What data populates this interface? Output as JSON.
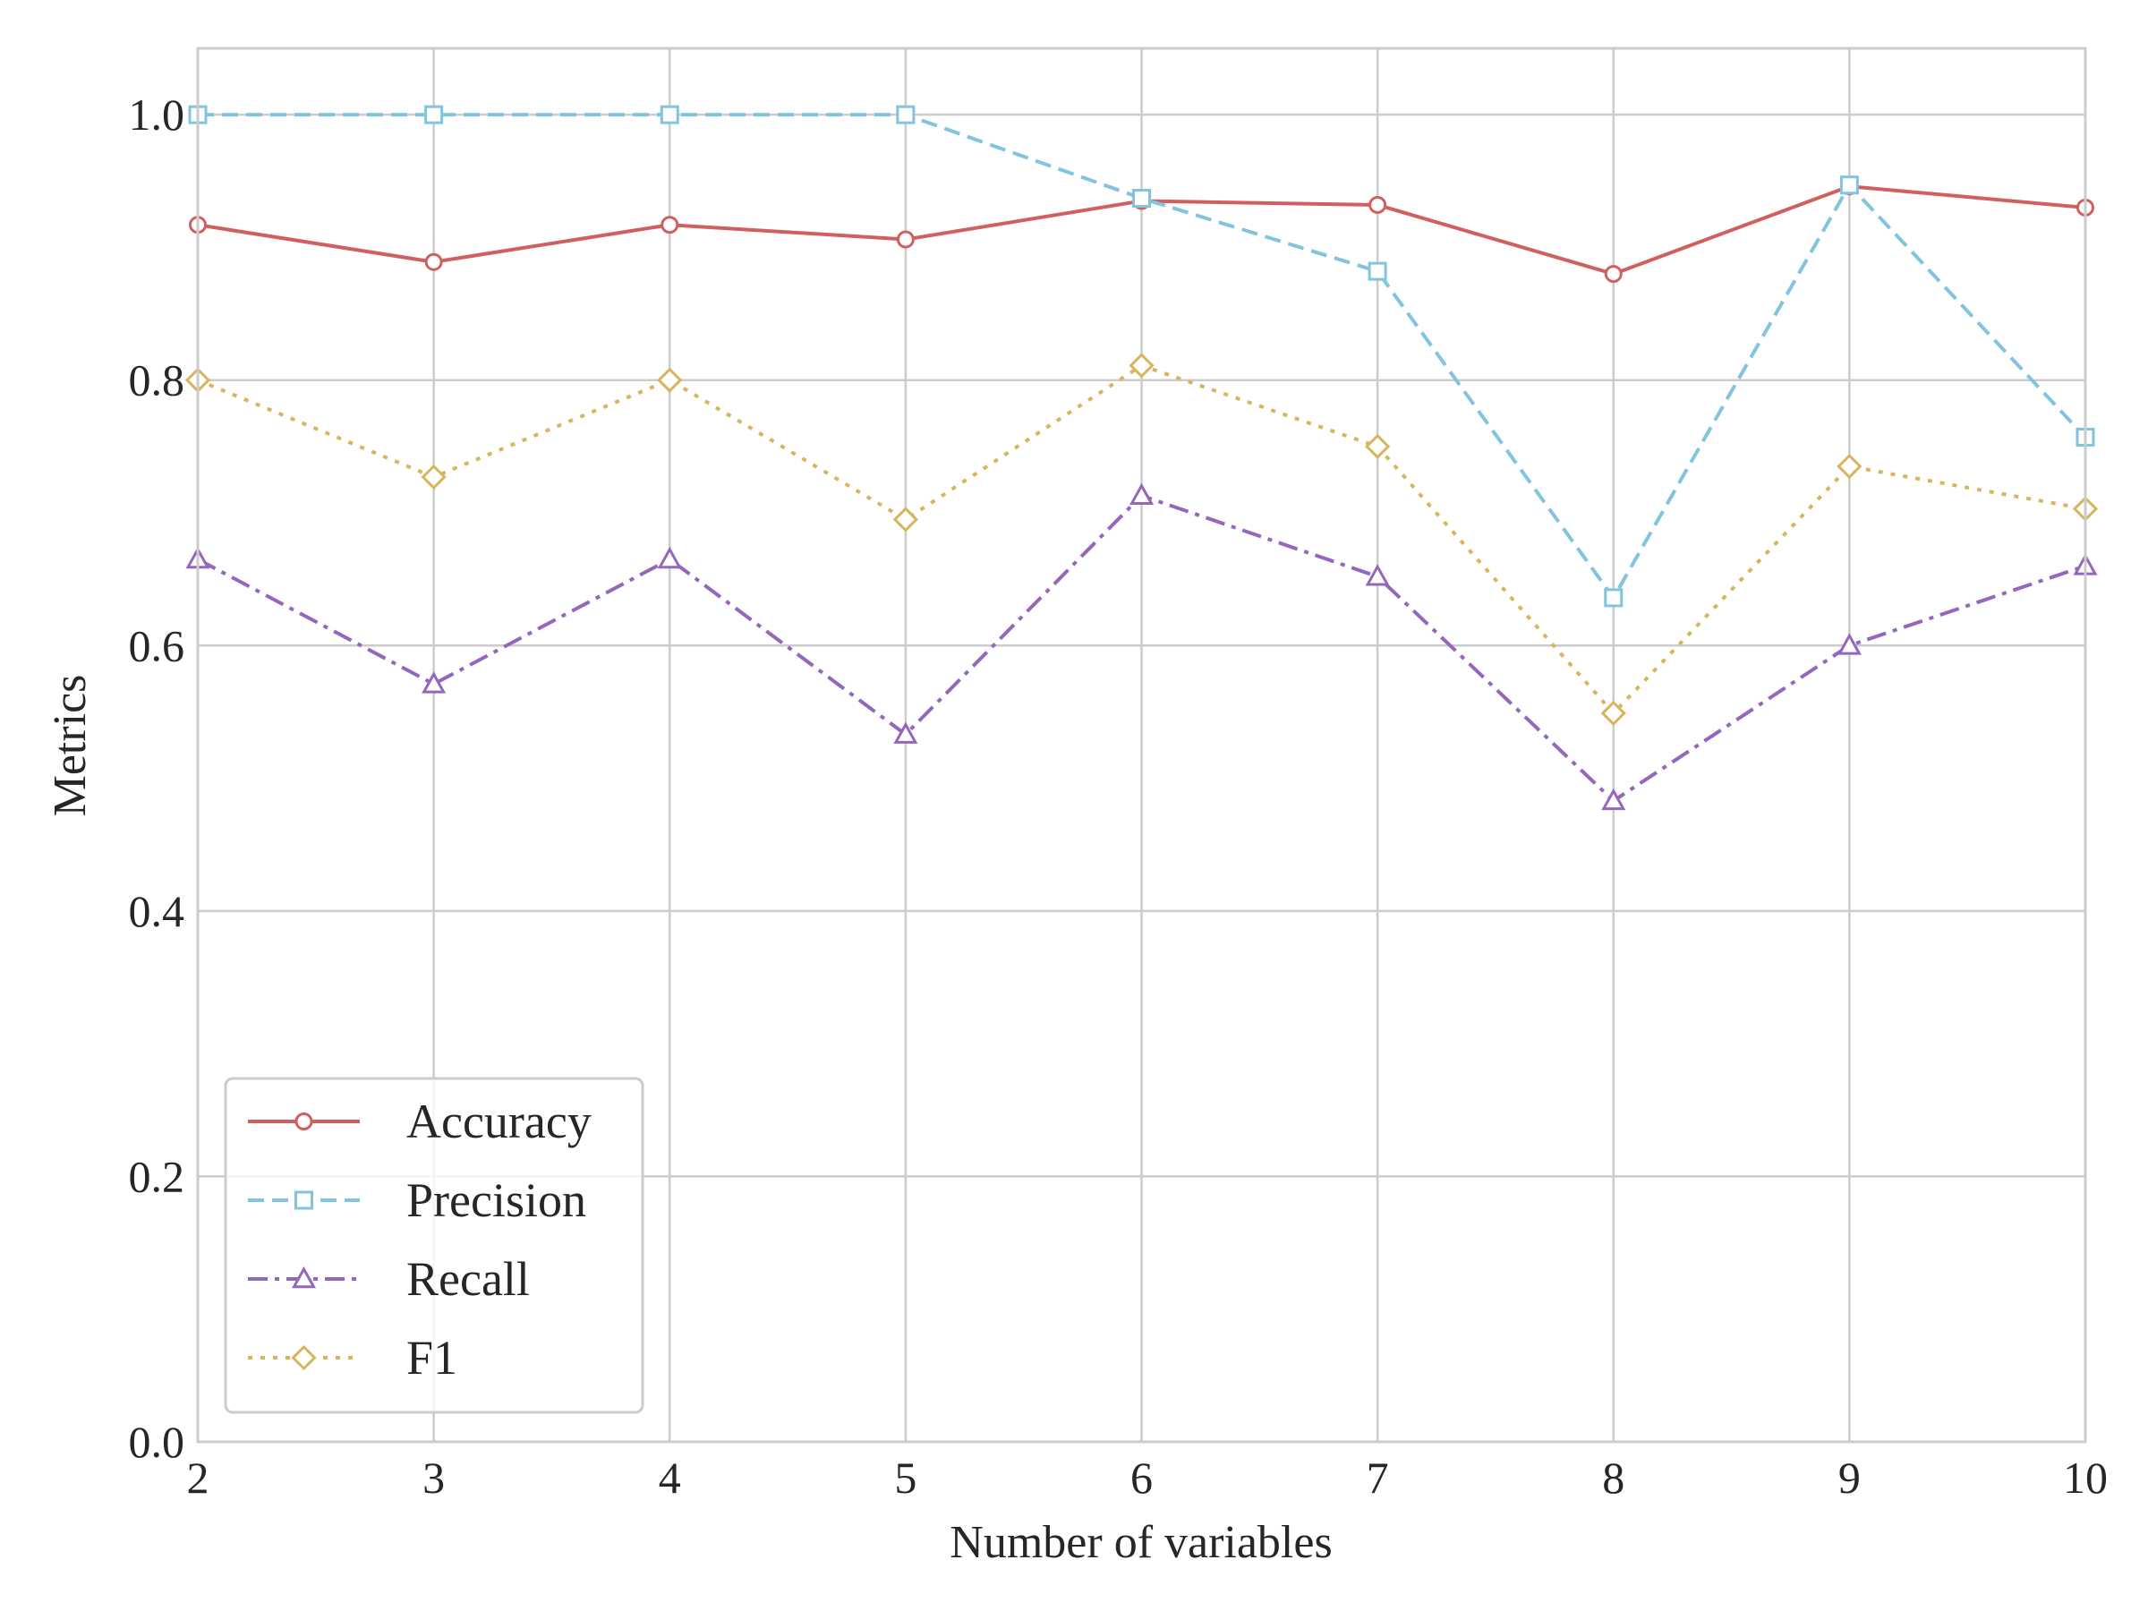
{
  "chart_data": {
    "type": "line",
    "xlabel": "Number of variables",
    "ylabel": "Metrics",
    "x": [
      2,
      3,
      4,
      5,
      6,
      7,
      8,
      9,
      10
    ],
    "xlim": [
      2,
      10
    ],
    "ylim": [
      0.0,
      1.05
    ],
    "xticks": [
      "2",
      "3",
      "4",
      "5",
      "6",
      "7",
      "8",
      "9",
      "10"
    ],
    "yticks": [
      0.0,
      0.2,
      0.4,
      0.6,
      0.8,
      1.0
    ],
    "ytick_labels": [
      "0.0",
      "0.2",
      "0.4",
      "0.6",
      "0.8",
      "1.0"
    ],
    "grid": true,
    "legend_position": "lower-left",
    "series": [
      {
        "name": "Accuracy",
        "color": "#d0605e",
        "marker": "circle",
        "linestyle": "solid",
        "values": [
          0.917,
          0.889,
          0.917,
          0.906,
          0.935,
          0.932,
          0.88,
          0.946,
          0.93
        ]
      },
      {
        "name": "Precision",
        "color": "#82c4e0",
        "marker": "square",
        "linestyle": "dashed",
        "values": [
          1.0,
          1.0,
          1.0,
          1.0,
          0.937,
          0.882,
          0.636,
          0.947,
          0.757
        ]
      },
      {
        "name": "Recall",
        "color": "#9467bd",
        "marker": "triangle",
        "linestyle": "dashdot",
        "values": [
          0.665,
          0.571,
          0.665,
          0.533,
          0.713,
          0.652,
          0.483,
          0.6,
          0.66
        ]
      },
      {
        "name": "F1",
        "color": "#d8b45c",
        "marker": "diamond",
        "linestyle": "dotted",
        "values": [
          0.8,
          0.727,
          0.8,
          0.695,
          0.811,
          0.75,
          0.549,
          0.735,
          0.703
        ]
      }
    ]
  }
}
